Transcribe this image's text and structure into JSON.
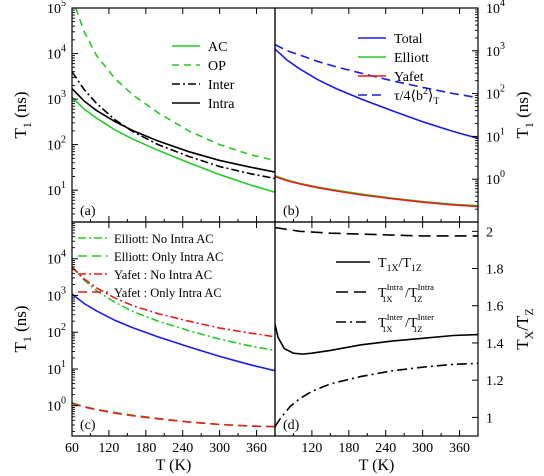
{
  "chart_data": [
    {
      "panel_label": "(a)",
      "type": "line",
      "yscale": "log",
      "xlim": [
        60,
        390
      ],
      "ylim": [
        2,
        100000
      ],
      "ylabel": "T",
      "ylabel_sub": "1",
      "ylabel_unit": " (ns)",
      "ylabel_side": "left",
      "xticks": [
        60,
        120,
        180,
        240,
        300,
        360
      ],
      "xtick_labels": [],
      "yticks": [
        10,
        100,
        1000,
        10000,
        100000
      ],
      "ytick_labels": [
        [
          "10",
          "1"
        ],
        [
          "10",
          "2"
        ],
        [
          "10",
          "3"
        ],
        [
          "10",
          "4"
        ],
        [
          "10",
          "5"
        ]
      ],
      "legend_placement": "top-right",
      "series": [
        {
          "name": "AC",
          "color": "#22cc22",
          "dash": "",
          "x": [
            60,
            80,
            100,
            130,
            160,
            200,
            250,
            300,
            350,
            390
          ],
          "y": [
            1100,
            600,
            380,
            210,
            130,
            75,
            40,
            22,
            13,
            9
          ]
        },
        {
          "name": "OP",
          "color": "#22cc22",
          "dash": "7,5",
          "x": [
            66,
            80,
            100,
            130,
            160,
            200,
            250,
            300,
            350,
            390
          ],
          "y": [
            100000,
            30000,
            9000,
            2800,
            1200,
            500,
            200,
            100,
            60,
            45
          ]
        },
        {
          "name": "Inter",
          "color": "#000000",
          "dash": "8,3,2,3",
          "x": [
            60,
            80,
            100,
            130,
            160,
            200,
            250,
            300,
            350,
            390
          ],
          "y": [
            4000,
            1600,
            800,
            350,
            190,
            100,
            55,
            33,
            23,
            18
          ]
        },
        {
          "name": "Intra",
          "color": "#000000",
          "dash": "",
          "x": [
            60,
            80,
            100,
            130,
            160,
            200,
            250,
            300,
            350,
            390
          ],
          "y": [
            1700,
            900,
            560,
            320,
            200,
            120,
            70,
            45,
            32,
            25
          ]
        }
      ]
    },
    {
      "panel_label": "(b)",
      "type": "line",
      "yscale": "log",
      "xlim": [
        60,
        390
      ],
      "ylim": [
        0.1,
        10000
      ],
      "ylabel": "T",
      "ylabel_sub": "1",
      "ylabel_unit": " (ns)",
      "ylabel_side": "right",
      "xticks": [
        60,
        120,
        180,
        240,
        300,
        360
      ],
      "xtick_labels": [],
      "yticks": [
        1,
        10,
        100,
        1000,
        10000
      ],
      "ytick_labels": [
        [
          "10",
          "0"
        ],
        [
          "10",
          "1"
        ],
        [
          "10",
          "2"
        ],
        [
          "10",
          "3"
        ],
        [
          "10",
          "4"
        ]
      ],
      "legend_placement": "top-right",
      "series": [
        {
          "name": "Total",
          "color": "#1a1aee",
          "dash": "",
          "x": [
            60,
            80,
            100,
            130,
            160,
            200,
            250,
            300,
            350,
            390
          ],
          "y": [
            1100,
            600,
            380,
            210,
            130,
            75,
            40,
            22,
            13,
            9
          ]
        },
        {
          "name": "Elliott",
          "color": "#22cc22",
          "dash": "",
          "x": [
            60,
            80,
            100,
            130,
            160,
            200,
            250,
            300,
            350,
            390
          ],
          "y": [
            1.2,
            0.95,
            0.8,
            0.65,
            0.55,
            0.45,
            0.36,
            0.3,
            0.26,
            0.24
          ]
        },
        {
          "name": "Yafet",
          "color": "#ee1a1a",
          "dash": "",
          "x": [
            60,
            80,
            100,
            130,
            160,
            200,
            250,
            300,
            350,
            390
          ],
          "y": [
            1.15,
            0.92,
            0.78,
            0.63,
            0.53,
            0.43,
            0.35,
            0.29,
            0.25,
            0.23
          ]
        },
        {
          "name": "τ/4⟨b²⟩T",
          "color": "#1a1aee",
          "dash": "9,5",
          "x": [
            60,
            80,
            100,
            130,
            160,
            200,
            250,
            300,
            350,
            390
          ],
          "y": [
            1400,
            1000,
            800,
            560,
            420,
            300,
            200,
            140,
            100,
            80
          ]
        }
      ],
      "legend_rich": [
        {
          "series": 0,
          "text": [
            [
              "",
              "Total"
            ]
          ]
        },
        {
          "series": 1,
          "text": [
            [
              "",
              "Elliott"
            ]
          ]
        },
        {
          "series": 2,
          "text": [
            [
              "",
              "Yafet"
            ]
          ]
        },
        {
          "series": 3,
          "text": [
            [
              "",
              "τ/4⟨b"
            ],
            [
              "sup",
              "2"
            ],
            [
              "",
              "⟩"
            ],
            [
              "sub",
              "T"
            ]
          ]
        }
      ]
    },
    {
      "panel_label": "(c)",
      "type": "line",
      "yscale": "log",
      "xlim": [
        60,
        390
      ],
      "ylim": [
        0.15,
        100000
      ],
      "ylabel": "T",
      "ylabel_sub": "1",
      "ylabel_unit": " (ns)",
      "ylabel_side": "left",
      "xlabel": "T (K)",
      "xticks": [
        60,
        120,
        180,
        240,
        300,
        360
      ],
      "xtick_labels": [
        "60",
        "120",
        "180",
        "240",
        "300",
        "360"
      ],
      "yticks": [
        1,
        10,
        100,
        1000,
        10000
      ],
      "ytick_labels": [
        [
          "10",
          "0"
        ],
        [
          "10",
          "1"
        ],
        [
          "10",
          "2"
        ],
        [
          "10",
          "3"
        ],
        [
          "10",
          "4"
        ]
      ],
      "legend_placement": "top",
      "series": [
        {
          "name": "",
          "color": "#1a1aee",
          "dash": "",
          "x": [
            60,
            80,
            100,
            130,
            160,
            200,
            250,
            300,
            350,
            390
          ],
          "y": [
            1100,
            600,
            380,
            210,
            130,
            75,
            40,
            22,
            13,
            9
          ]
        },
        {
          "name": "Elliott: No Intra AC",
          "color": "#22cc22",
          "dash": "8,3,2,3",
          "x": [
            60,
            80,
            100,
            130,
            160,
            200,
            250,
            300,
            350,
            390
          ],
          "y": [
            6000,
            2600,
            1350,
            650,
            360,
            200,
            110,
            65,
            42,
            32
          ]
        },
        {
          "name": "Elliott: Only Intra AC",
          "color": "#22cc22",
          "dash": "9,5",
          "x": [
            60,
            80,
            100,
            130,
            160,
            200,
            250,
            300,
            350,
            390
          ],
          "y": [
            1.2,
            0.95,
            0.8,
            0.65,
            0.55,
            0.45,
            0.36,
            0.31,
            0.28,
            0.27
          ]
        },
        {
          "name": "Yafet : No Intra AC",
          "color": "#ee1a1a",
          "dash": "8,3,2,3",
          "x": [
            60,
            80,
            100,
            130,
            160,
            200,
            250,
            300,
            350,
            390
          ],
          "y": [
            6000,
            2800,
            1600,
            850,
            520,
            320,
            200,
            130,
            95,
            75
          ]
        },
        {
          "name": "Yafet : Only Intra AC",
          "color": "#ee1a1a",
          "dash": "9,5",
          "x": [
            60,
            80,
            100,
            130,
            160,
            200,
            250,
            300,
            350,
            390
          ],
          "y": [
            1.15,
            0.92,
            0.78,
            0.63,
            0.53,
            0.44,
            0.36,
            0.31,
            0.28,
            0.27
          ]
        }
      ]
    },
    {
      "panel_label": "(d)",
      "type": "line",
      "yscale": "linear",
      "xlim": [
        60,
        390
      ],
      "ylim": [
        0.9,
        2.05
      ],
      "ylabel": "T",
      "ylabel_sub": "X",
      "ylabel_mid": "/T",
      "ylabel_sub2": "Z",
      "ylabel_side": "right",
      "xlabel": "T (K)",
      "xticks": [
        60,
        120,
        180,
        240,
        300,
        360
      ],
      "xtick_labels": [
        "",
        "120",
        "180",
        "240",
        "300",
        "360"
      ],
      "yticks": [
        1.0,
        1.2,
        1.4,
        1.6,
        1.8,
        2.0
      ],
      "ytick_labels": [
        [
          "1",
          ""
        ],
        [
          "1.2",
          ""
        ],
        [
          "1.4",
          ""
        ],
        [
          "1.6",
          ""
        ],
        [
          "1.8",
          ""
        ],
        [
          "2",
          ""
        ]
      ],
      "legend_placement": "middle-right",
      "series": [
        {
          "name": "T1X/T1Z",
          "color": "#000000",
          "dash": "",
          "x": [
            60,
            65,
            75,
            90,
            105,
            120,
            150,
            200,
            250,
            300,
            350,
            390
          ],
          "y": [
            1.5,
            1.43,
            1.37,
            1.345,
            1.34,
            1.345,
            1.36,
            1.39,
            1.41,
            1.425,
            1.44,
            1.445
          ]
        },
        {
          "name": "T1X Intra/T1Z Intra",
          "color": "#000000",
          "dash": "12,6",
          "x": [
            60,
            100,
            150,
            200,
            250,
            300,
            350,
            390
          ],
          "y": [
            2.02,
            2.0,
            1.99,
            1.985,
            1.98,
            1.975,
            1.975,
            1.975
          ]
        },
        {
          "name": "T1X Inter/T1Z Inter",
          "color": "#000000",
          "dash": "10,4,2,4",
          "x": [
            60,
            70,
            85,
            100,
            120,
            150,
            200,
            250,
            300,
            350,
            390
          ],
          "y": [
            0.95,
            1.0,
            1.06,
            1.1,
            1.14,
            1.18,
            1.22,
            1.25,
            1.27,
            1.285,
            1.29
          ]
        }
      ],
      "legend_rich": [
        {
          "series": 0,
          "text": [
            [
              "",
              "T"
            ],
            [
              "sub",
              "1X"
            ],
            [
              "",
              "/T"
            ],
            [
              "sub",
              "1Z"
            ]
          ]
        },
        {
          "series": 1,
          "text": [
            [
              "",
              "T"
            ],
            [
              "subsup",
              "1X",
              "Intra"
            ],
            [
              "",
              "/T"
            ],
            [
              "subsup",
              "1Z",
              "Intra"
            ]
          ]
        },
        {
          "series": 2,
          "text": [
            [
              "",
              "T"
            ],
            [
              "subsup",
              "1X",
              "Inter"
            ],
            [
              "",
              "/T"
            ],
            [
              "subsup",
              "1Z",
              "Inter"
            ]
          ]
        }
      ]
    }
  ]
}
